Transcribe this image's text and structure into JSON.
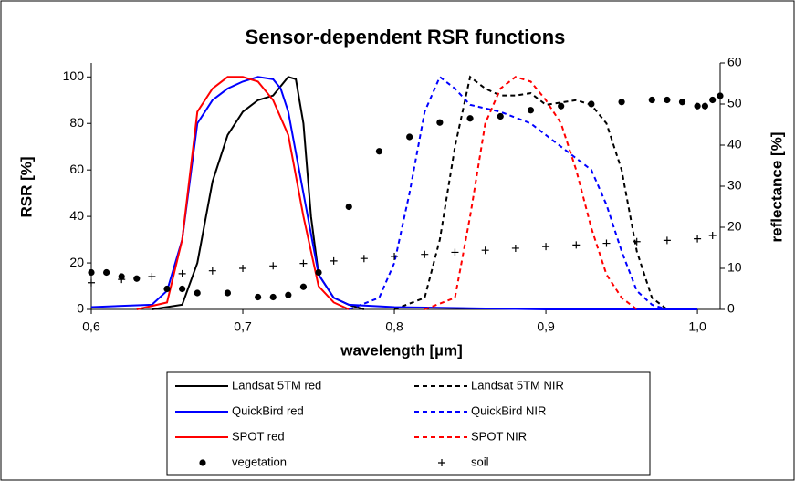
{
  "chart_data": {
    "type": "line",
    "title": "Sensor-dependent RSR functions",
    "xlabel": "wavelength [µm]",
    "ylabel": "RSR [%]",
    "y2label": "reflectance [%]",
    "xlim": [
      0.6,
      1.015
    ],
    "ylim": [
      0,
      106
    ],
    "y2lim": [
      0,
      60
    ],
    "xticks": [
      {
        "value": 0.6,
        "label": "0,6"
      },
      {
        "value": 0.7,
        "label": "0,7"
      },
      {
        "value": 0.8,
        "label": "0,8"
      },
      {
        "value": 0.9,
        "label": "0,9"
      },
      {
        "value": 1.0,
        "label": "1,0"
      }
    ],
    "yticks": [
      0,
      20,
      40,
      60,
      80,
      100
    ],
    "y2ticks": [
      0,
      10,
      20,
      30,
      40,
      50,
      60
    ],
    "series": [
      {
        "name": "Landsat 5TM red",
        "color": "#000000",
        "linestyle": "solid",
        "x": [
          0.64,
          0.66,
          0.67,
          0.68,
          0.69,
          0.7,
          0.71,
          0.72,
          0.73,
          0.735,
          0.74,
          0.745,
          0.75,
          0.76,
          0.77,
          0.78
        ],
        "values": [
          0,
          2,
          20,
          55,
          75,
          85,
          90,
          92,
          100,
          99,
          80,
          40,
          15,
          5,
          2,
          0
        ]
      },
      {
        "name": "Landsat 5TM NIR",
        "color": "#000000",
        "linestyle": "dashed",
        "x": [
          0.8,
          0.82,
          0.83,
          0.84,
          0.85,
          0.86,
          0.87,
          0.88,
          0.89,
          0.9,
          0.92,
          0.93,
          0.94,
          0.95,
          0.96,
          0.97,
          0.98
        ],
        "values": [
          0,
          5,
          30,
          70,
          100,
          95,
          92,
          92,
          93,
          88,
          90,
          88,
          80,
          60,
          25,
          5,
          0
        ]
      },
      {
        "name": "QuickBird red",
        "color": "#0000ff",
        "linestyle": "solid",
        "x": [
          0.6,
          0.64,
          0.65,
          0.66,
          0.67,
          0.68,
          0.69,
          0.7,
          0.71,
          0.72,
          0.725,
          0.73,
          0.74,
          0.75,
          0.76,
          0.77,
          0.8,
          0.85,
          0.9,
          1.0
        ],
        "values": [
          1,
          2,
          8,
          30,
          80,
          90,
          95,
          98,
          100,
          99,
          95,
          85,
          50,
          15,
          5,
          2,
          1,
          0.5,
          0,
          0
        ]
      },
      {
        "name": "QuickBird NIR",
        "color": "#0000ff",
        "linestyle": "dashed",
        "x": [
          0.77,
          0.79,
          0.8,
          0.81,
          0.82,
          0.83,
          0.84,
          0.85,
          0.87,
          0.89,
          0.91,
          0.93,
          0.94,
          0.95,
          0.96,
          0.97,
          0.98
        ],
        "values": [
          0,
          5,
          20,
          50,
          85,
          100,
          95,
          88,
          85,
          80,
          70,
          60,
          45,
          25,
          8,
          2,
          0
        ]
      },
      {
        "name": "SPOT red",
        "color": "#ff0000",
        "linestyle": "solid",
        "x": [
          0.63,
          0.65,
          0.66,
          0.67,
          0.68,
          0.69,
          0.7,
          0.71,
          0.72,
          0.73,
          0.74,
          0.75,
          0.76,
          0.77
        ],
        "values": [
          0,
          3,
          30,
          85,
          95,
          100,
          100,
          98,
          90,
          75,
          40,
          10,
          3,
          0
        ]
      },
      {
        "name": "SPOT NIR",
        "color": "#ff0000",
        "linestyle": "dashed",
        "x": [
          0.82,
          0.84,
          0.85,
          0.86,
          0.87,
          0.88,
          0.89,
          0.9,
          0.91,
          0.92,
          0.93,
          0.94,
          0.95,
          0.96
        ],
        "values": [
          0,
          5,
          40,
          80,
          95,
          100,
          98,
          90,
          80,
          60,
          35,
          15,
          5,
          0
        ]
      },
      {
        "name": "vegetation",
        "color": "#000000",
        "marker": "circle",
        "axis": "y2",
        "x": [
          0.6,
          0.61,
          0.62,
          0.63,
          0.65,
          0.66,
          0.67,
          0.69,
          0.71,
          0.72,
          0.73,
          0.74,
          0.75,
          0.77,
          0.79,
          0.81,
          0.83,
          0.85,
          0.87,
          0.89,
          0.91,
          0.93,
          0.95,
          0.97,
          0.98,
          0.99,
          1.0,
          1.005,
          1.01,
          1.015
        ],
        "values": [
          9,
          9,
          8,
          7.5,
          5,
          5,
          4,
          4,
          3,
          3,
          3.5,
          5.5,
          9,
          25,
          38.5,
          42,
          45.5,
          46.5,
          47,
          48.5,
          49.5,
          50,
          50.5,
          51,
          51,
          50.5,
          49.5,
          49.5,
          51,
          52
        ]
      },
      {
        "name": "soil",
        "color": "#000000",
        "marker": "plus",
        "axis": "y2",
        "x": [
          0.6,
          0.62,
          0.64,
          0.66,
          0.68,
          0.7,
          0.72,
          0.74,
          0.76,
          0.78,
          0.8,
          0.82,
          0.84,
          0.86,
          0.88,
          0.9,
          0.92,
          0.94,
          0.96,
          0.98,
          1.0,
          1.01
        ],
        "values": [
          6.5,
          7.3,
          8,
          8.7,
          9.4,
          10,
          10.6,
          11.2,
          11.8,
          12.4,
          12.9,
          13.4,
          13.9,
          14.4,
          14.9,
          15.3,
          15.7,
          16.1,
          16.5,
          16.8,
          17.2,
          18
        ]
      }
    ]
  }
}
